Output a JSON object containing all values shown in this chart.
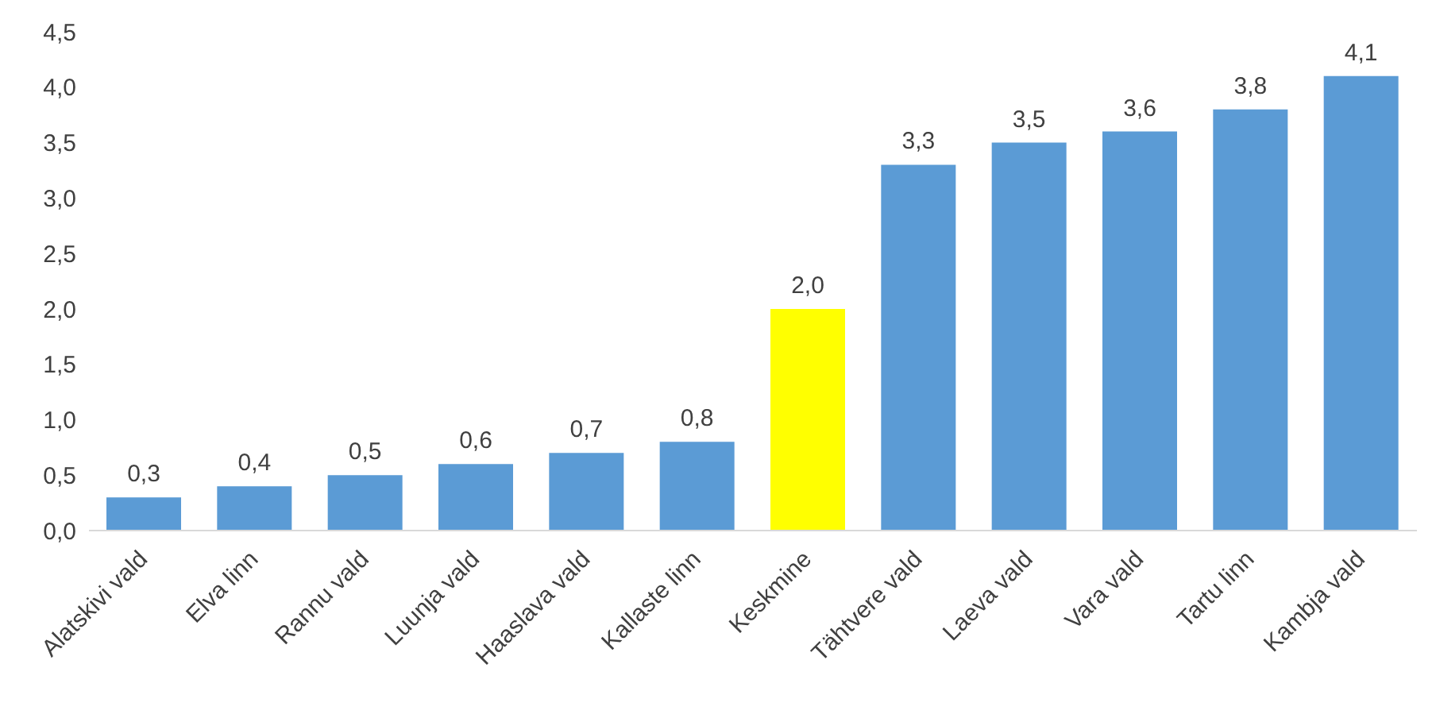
{
  "chart_data": {
    "type": "bar",
    "categories": [
      "Alatskivi vald",
      "Elva linn",
      "Rannu vald",
      "Luunja vald",
      "Haaslava vald",
      "Kallaste linn",
      "Keskmine",
      "Tähtvere vald",
      "Laeva vald",
      "Vara vald",
      "Tartu linn",
      "Kambja vald"
    ],
    "values": [
      0.3,
      0.4,
      0.5,
      0.6,
      0.7,
      0.8,
      2.0,
      3.3,
      3.5,
      3.6,
      3.8,
      4.1
    ],
    "value_labels": [
      "0,3",
      "0,4",
      "0,5",
      "0,6",
      "0,7",
      "0,8",
      "2,0",
      "3,3",
      "3,5",
      "3,6",
      "3,8",
      "4,1"
    ],
    "colors": [
      "#5b9bd5",
      "#5b9bd5",
      "#5b9bd5",
      "#5b9bd5",
      "#5b9bd5",
      "#5b9bd5",
      "#ffff00",
      "#5b9bd5",
      "#5b9bd5",
      "#5b9bd5",
      "#5b9bd5",
      "#5b9bd5"
    ],
    "ylim": [
      0,
      4.5
    ],
    "yticks": [
      {
        "value": 0,
        "label": "0,0"
      },
      {
        "value": 0.5,
        "label": "0,5"
      },
      {
        "value": 1,
        "label": "1,0"
      },
      {
        "value": 1.5,
        "label": "1,5"
      },
      {
        "value": 2,
        "label": "2,0"
      },
      {
        "value": 2.5,
        "label": "2,5"
      },
      {
        "value": 3,
        "label": "3,0"
      },
      {
        "value": 3.5,
        "label": "3,5"
      },
      {
        "value": 4,
        "label": "4,0"
      },
      {
        "value": 4.5,
        "label": "4,5"
      }
    ],
    "grid": false,
    "legend": false
  }
}
